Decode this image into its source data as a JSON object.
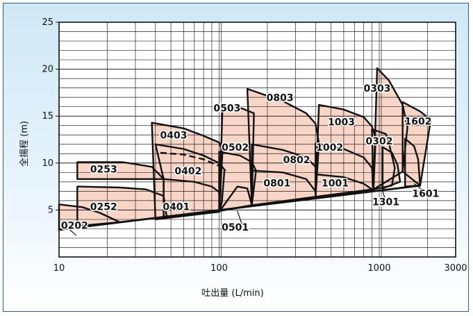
{
  "chart_data": {
    "type": "area",
    "title": "",
    "xlabel": "吐出量 (L/min)",
    "ylabel": "全揚程 (m)",
    "xscale": "log",
    "xlim": [
      10,
      3000
    ],
    "ylim": [
      0,
      25
    ],
    "grid": true,
    "x_ticks": [
      "10",
      "100",
      "1000",
      "3000"
    ],
    "y_ticks": [
      "5",
      "10",
      "15",
      "20",
      "25"
    ],
    "region_fill": "#f8d5c7",
    "outline_color": "#111111",
    "regions": [
      {
        "name": "0202",
        "label_at": [
          12.5,
          3.0
        ],
        "points": [
          [
            10,
            5.6
          ],
          [
            14,
            5.3
          ],
          [
            18,
            4.7
          ],
          [
            24,
            3.7
          ],
          [
            24,
            3.7
          ],
          [
            10,
            2.9
          ]
        ]
      },
      {
        "name": "0252",
        "label_at": [
          19,
          5.0
        ],
        "points": [
          [
            13,
            7.5
          ],
          [
            24,
            7.4
          ],
          [
            35,
            7.2
          ],
          [
            45,
            6.5
          ],
          [
            47,
            4.3
          ],
          [
            24,
            3.7
          ],
          [
            13,
            3.3
          ]
        ]
      },
      {
        "name": "0253",
        "label_at": [
          19,
          9.0
        ],
        "points": [
          [
            13,
            10.1
          ],
          [
            25,
            10.1
          ],
          [
            38,
            9.6
          ],
          [
            45,
            8.3
          ],
          [
            13,
            8.3
          ]
        ]
      },
      {
        "name": "0401",
        "label_at": [
          54,
          5.0
        ],
        "points": [
          [
            45,
            8.3
          ],
          [
            70,
            8.0
          ],
          [
            90,
            7.5
          ],
          [
            100,
            6.9
          ],
          [
            102,
            5.0
          ],
          [
            100,
            4.8
          ],
          [
            45,
            4.3
          ]
        ]
      },
      {
        "name": "0402",
        "label_at": [
          64,
          8.8
        ],
        "points": [
          [
            40,
            12.0
          ],
          [
            60,
            11.5
          ],
          [
            80,
            10.8
          ],
          [
            100,
            10.0
          ],
          [
            108,
            9.3
          ],
          [
            104,
            5.8
          ],
          [
            100,
            4.8
          ],
          [
            45,
            4.3
          ],
          [
            45,
            8.3
          ]
        ]
      },
      {
        "name": "0403",
        "label_at": [
          52,
          12.6
        ],
        "points": [
          [
            38,
            14.3
          ],
          [
            60,
            13.7
          ],
          [
            80,
            12.9
          ],
          [
            100,
            12.2
          ],
          [
            105,
            11.3
          ],
          [
            100,
            4.8
          ],
          [
            40,
            4.0
          ]
        ]
      },
      {
        "name": "0501",
        "label_at": [
          126,
          2.8
        ],
        "points": [
          [
            100,
            4.8
          ],
          [
            130,
            7.5
          ],
          [
            150,
            7.3
          ],
          [
            160,
            5.5
          ],
          [
            100,
            4.9
          ]
        ]
      },
      {
        "name": "0502",
        "label_at": [
          126,
          11.3
        ],
        "points": [
          [
            100,
            11.2
          ],
          [
            135,
            10.8
          ],
          [
            160,
            10.1
          ],
          [
            170,
            9.2
          ],
          [
            160,
            5.5
          ],
          [
            100,
            4.9
          ]
        ]
      },
      {
        "name": "0503",
        "label_at": [
          112,
          15.5
        ],
        "points": [
          [
            105,
            16.1
          ],
          [
            140,
            15.8
          ],
          [
            165,
            15.3
          ],
          [
            160,
            5.5
          ],
          [
            100,
            4.9
          ]
        ]
      },
      {
        "name": "0801",
        "label_at": [
          230,
          7.5
        ],
        "points": [
          [
            160,
            9.2
          ],
          [
            250,
            9.0
          ],
          [
            350,
            8.3
          ],
          [
            400,
            7.0
          ],
          [
            400,
            6.4
          ],
          [
            160,
            5.5
          ]
        ]
      },
      {
        "name": "0802",
        "label_at": [
          305,
          10.0
        ],
        "points": [
          [
            160,
            12.0
          ],
          [
            250,
            11.4
          ],
          [
            350,
            10.6
          ],
          [
            400,
            9.6
          ],
          [
            400,
            6.4
          ],
          [
            160,
            5.5
          ]
        ]
      },
      {
        "name": "0803",
        "label_at": [
          240,
          16.6
        ],
        "points": [
          [
            150,
            17.9
          ],
          [
            250,
            16.6
          ],
          [
            350,
            15.3
          ],
          [
            400,
            14.2
          ],
          [
            420,
            12.1
          ],
          [
            400,
            6.4
          ],
          [
            160,
            5.5
          ]
        ]
      },
      {
        "name": "1001",
        "label_at": [
          530,
          7.5
        ],
        "points": [
          [
            400,
            8.8
          ],
          [
            600,
            8.5
          ],
          [
            800,
            7.8
          ],
          [
            900,
            7.2
          ],
          [
            400,
            6.4
          ]
        ]
      },
      {
        "name": "1002",
        "label_at": [
          490,
          11.3
        ],
        "points": [
          [
            400,
            12.1
          ],
          [
            600,
            11.5
          ],
          [
            800,
            10.6
          ],
          [
            900,
            9.5
          ],
          [
            920,
            7.2
          ],
          [
            400,
            6.4
          ]
        ]
      },
      {
        "name": "1003",
        "label_at": [
          580,
          14.0
        ],
        "points": [
          [
            420,
            16.2
          ],
          [
            600,
            15.7
          ],
          [
            800,
            14.9
          ],
          [
            900,
            13.9
          ],
          [
            950,
            12.7
          ],
          [
            920,
            7.2
          ],
          [
            400,
            6.4
          ]
        ]
      },
      {
        "name": "0302",
        "label_at": [
          1000,
          12.0
        ],
        "points": [
          [
            900,
            13.6
          ],
          [
            1100,
            13.1
          ],
          [
            1150,
            12.1
          ],
          [
            1250,
            9.5
          ],
          [
            1200,
            7.6
          ],
          [
            920,
            7.2
          ]
        ]
      },
      {
        "name": "0303",
        "label_at": [
          970,
          17.6
        ],
        "points": [
          [
            970,
            20.1
          ],
          [
            1150,
            18.8
          ],
          [
            1400,
            16.2
          ],
          [
            1500,
            13.8
          ],
          [
            1400,
            9.1
          ],
          [
            920,
            7.2
          ]
        ]
      },
      {
        "name": "1301",
        "label_at": [
          1100,
          5.5
        ],
        "points": [
          [
            1050,
            11.7
          ],
          [
            1200,
            11.1
          ],
          [
            1300,
            9.8
          ],
          [
            1350,
            8.0
          ],
          [
            1050,
            7.3
          ]
        ]
      },
      {
        "name": "1601",
        "label_at": [
          1950,
          6.4
        ],
        "points": [
          [
            1450,
            12.6
          ],
          [
            1650,
            11.8
          ],
          [
            1750,
            10.4
          ],
          [
            1800,
            7.6
          ],
          [
            1450,
            7.5
          ]
        ]
      },
      {
        "name": "1602",
        "label_at": [
          1750,
          14.1
        ],
        "points": [
          [
            1400,
            16.5
          ],
          [
            1800,
            15.5
          ],
          [
            2100,
            14.6
          ],
          [
            1800,
            7.6
          ],
          [
            1400,
            9.1
          ]
        ]
      }
    ],
    "dashed_curves": [
      {
        "points": [
          [
            43,
            11.1
          ],
          [
            60,
            10.9
          ],
          [
            80,
            10.4
          ],
          [
            100,
            9.7
          ],
          [
            110,
            9.2
          ]
        ]
      }
    ],
    "baseline": {
      "points": [
        [
          10,
          2.9
        ],
        [
          1800,
          7.6
        ]
      ]
    },
    "leaders": [
      {
        "from": [
          11,
          3.3
        ],
        "to": [
          12.8,
          2.3
        ]
      },
      {
        "from": [
          130,
          4.9
        ],
        "to": [
          140,
          3.3
        ]
      },
      {
        "from": [
          1050,
          7.0
        ],
        "to": [
          1100,
          5.9
        ]
      },
      {
        "from": [
          1650,
          7.8
        ],
        "to": [
          1950,
          6.9
        ]
      }
    ]
  }
}
